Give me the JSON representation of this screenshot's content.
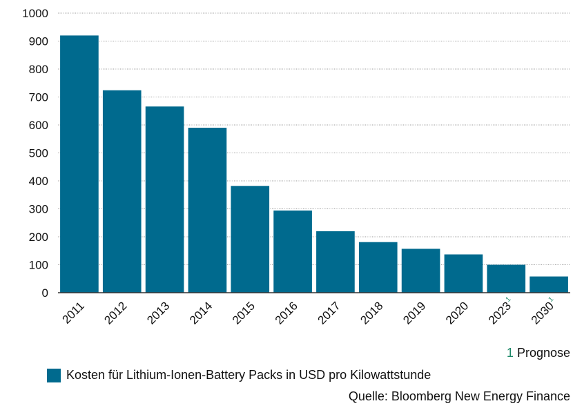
{
  "chart_data": {
    "type": "bar",
    "categories": [
      "2011",
      "2012",
      "2013",
      "2014",
      "2015",
      "2016",
      "2017",
      "2018",
      "2019",
      "2020",
      "2023",
      "2030"
    ],
    "footnote_markers": [
      "",
      "",
      "",
      "",
      "",
      "",
      "",
      "",
      "",
      "",
      "1",
      "1"
    ],
    "series": [
      {
        "name": "Kosten für Lithium-Ionen-Battery Packs in USD pro Kilowattstunde",
        "values": [
          920,
          724,
          666,
          590,
          382,
          294,
          220,
          181,
          157,
          137,
          100,
          58
        ],
        "color": "#006a8e"
      }
    ],
    "ylim": [
      0,
      1000
    ],
    "yticks": [
      0,
      100,
      200,
      300,
      400,
      500,
      600,
      700,
      800,
      900,
      1000
    ],
    "grid": true,
    "legend_position": "bottom-left"
  },
  "footnote": {
    "number": "1",
    "text": "Prognose"
  },
  "source_text": "Quelle: Bloomberg New Energy Finance",
  "colors": {
    "bar": "#006a8e",
    "grid": "#9a9a9a",
    "axis": "#333333",
    "footnote_accent": "#1f8a6a"
  }
}
